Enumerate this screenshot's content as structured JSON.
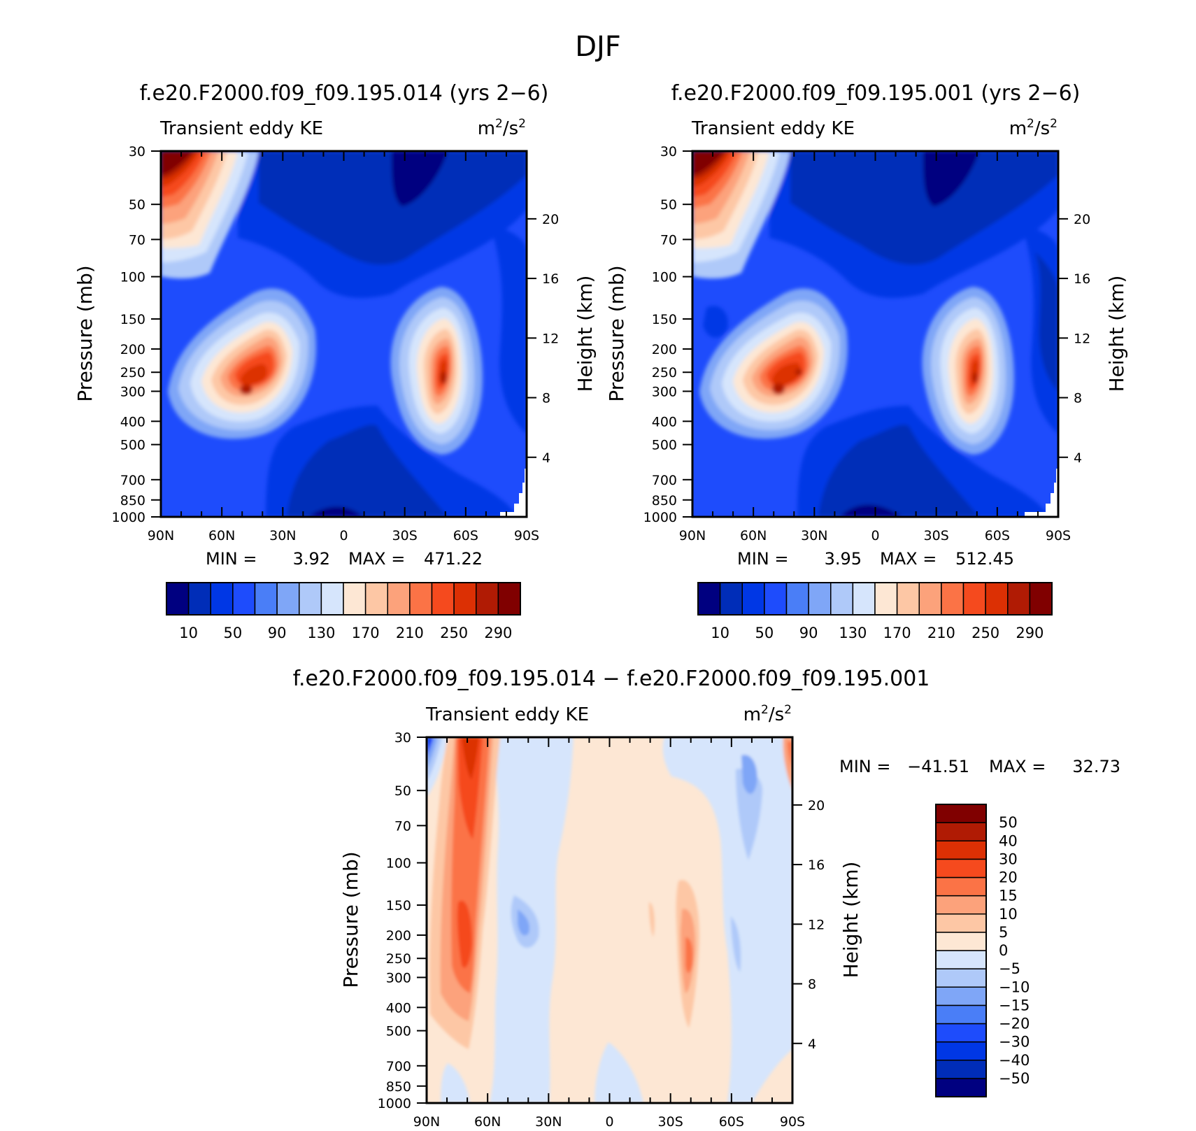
{
  "figure": {
    "title": "DJF"
  },
  "colors": {
    "djf_scale": [
      "#000080",
      "#002db8",
      "#0037e5",
      "#1e4cfc",
      "#4a7ef7",
      "#7fa6f7",
      "#afc9f9",
      "#d6e5fc",
      "#fde7d4",
      "#fdc7a5",
      "#fca27b",
      "#fb7346",
      "#f54a1e",
      "#dc3004",
      "#b01b04",
      "#800000"
    ],
    "diff_scale": [
      "#000080",
      "#002db8",
      "#0037e5",
      "#1e4cfc",
      "#4a7ef7",
      "#7fa6f7",
      "#afc9f9",
      "#d6e5fc",
      "#fde7d4",
      "#fdc7a5",
      "#fca27b",
      "#fb7346",
      "#f54a1e",
      "#dc3004",
      "#b01b04",
      "#800000"
    ]
  },
  "chart_data": [
    {
      "type": "contour",
      "title": "f.e20.F2000.f09_f09.195.014 (yrs 2−6)",
      "subtitle_left": "Transient eddy KE",
      "units_base": "m",
      "units_sup": "2",
      "units_mid": "/s",
      "units_sup2": "2",
      "xlabel": "",
      "ylabel": "Pressure (mb)",
      "ylabel_right": "Height (km)",
      "x_ticks": [
        "90N",
        "60N",
        "30N",
        "0",
        "30S",
        "60S",
        "90S"
      ],
      "x_lat": [
        90,
        60,
        30,
        0,
        -30,
        -60,
        -90
      ],
      "y_ticks": [
        "30",
        "50",
        "70",
        "100",
        "150",
        "200",
        "250",
        "300",
        "400",
        "500",
        "700",
        "850",
        "1000"
      ],
      "y_pressure": [
        30,
        50,
        70,
        100,
        150,
        200,
        250,
        300,
        400,
        500,
        700,
        850,
        1000
      ],
      "height_ticks": [
        "20",
        "16",
        "12",
        "8",
        "4"
      ],
      "height_km": [
        20,
        16,
        12,
        8,
        4
      ],
      "min_label": "MIN =",
      "min_value": "3.92",
      "max_label": "MAX =",
      "max_value": "471.22",
      "levels": [
        10,
        30,
        50,
        70,
        90,
        110,
        130,
        150,
        170,
        190,
        210,
        230,
        250,
        270,
        290
      ],
      "colorbar_labels": [
        "10",
        "50",
        "90",
        "130",
        "170",
        "210",
        "250",
        "290"
      ],
      "features": [
        {
          "name": "polar stratospheric maximum",
          "lat": 90,
          "p": 30,
          "value": 471
        },
        {
          "name": "northern jet core",
          "lat": 46,
          "p": 300,
          "value": 290
        },
        {
          "name": "southern jet core",
          "lat": -48,
          "p": 270,
          "value": 290
        },
        {
          "name": "tropical upper minimum",
          "lat": -25,
          "p": 45,
          "value": 5
        }
      ]
    },
    {
      "type": "contour",
      "title": "f.e20.F2000.f09_f09.195.001 (yrs 2−6)",
      "subtitle_left": "Transient eddy KE",
      "units_base": "m",
      "units_sup": "2",
      "units_mid": "/s",
      "units_sup2": "2",
      "xlabel": "",
      "ylabel": "Pressure (mb)",
      "ylabel_right": "Height (km)",
      "x_ticks": [
        "90N",
        "60N",
        "30N",
        "0",
        "30S",
        "60S",
        "90S"
      ],
      "x_lat": [
        90,
        60,
        30,
        0,
        -30,
        -60,
        -90
      ],
      "y_ticks": [
        "30",
        "50",
        "70",
        "100",
        "150",
        "200",
        "250",
        "300",
        "400",
        "500",
        "700",
        "850",
        "1000"
      ],
      "y_pressure": [
        30,
        50,
        70,
        100,
        150,
        200,
        250,
        300,
        400,
        500,
        700,
        850,
        1000
      ],
      "height_ticks": [
        "20",
        "16",
        "12",
        "8",
        "4"
      ],
      "height_km": [
        20,
        16,
        12,
        8,
        4
      ],
      "min_label": "MIN =",
      "min_value": "3.95",
      "max_label": "MAX =",
      "max_value": "512.45",
      "levels": [
        10,
        30,
        50,
        70,
        90,
        110,
        130,
        150,
        170,
        190,
        210,
        230,
        250,
        270,
        290
      ],
      "colorbar_labels": [
        "10",
        "50",
        "90",
        "130",
        "170",
        "210",
        "250",
        "290"
      ],
      "features": [
        {
          "name": "polar stratospheric maximum",
          "lat": 90,
          "p": 30,
          "value": 512
        },
        {
          "name": "northern jet core",
          "lat": 46,
          "p": 290,
          "value": 290
        },
        {
          "name": "southern jet core",
          "lat": -50,
          "p": 270,
          "value": 280
        },
        {
          "name": "tropical upper minimum",
          "lat": -20,
          "p": 45,
          "value": 5
        }
      ]
    },
    {
      "type": "contour",
      "title": "f.e20.F2000.f09_f09.195.014 − f.e20.F2000.f09_f09.195.001",
      "subtitle_left": "Transient eddy KE",
      "units_base": "m",
      "units_sup": "2",
      "units_mid": "/s",
      "units_sup2": "2",
      "xlabel": "",
      "ylabel": "Pressure (mb)",
      "ylabel_right": "Height (km)",
      "x_ticks": [
        "90N",
        "60N",
        "30N",
        "0",
        "30S",
        "60S",
        "90S"
      ],
      "x_lat": [
        90,
        60,
        30,
        0,
        -30,
        -60,
        -90
      ],
      "y_ticks": [
        "30",
        "50",
        "70",
        "100",
        "150",
        "200",
        "250",
        "300",
        "400",
        "500",
        "700",
        "850",
        "1000"
      ],
      "y_pressure": [
        30,
        50,
        70,
        100,
        150,
        200,
        250,
        300,
        400,
        500,
        700,
        850,
        1000
      ],
      "height_ticks": [
        "20",
        "16",
        "12",
        "8",
        "4"
      ],
      "height_km": [
        20,
        16,
        12,
        8,
        4
      ],
      "min_label": "MIN =",
      "min_value": "−41.51",
      "max_label": "MAX =",
      "max_value": "32.73",
      "levels": [
        -50,
        -40,
        -30,
        -20,
        -15,
        -10,
        -5,
        0,
        5,
        10,
        15,
        20,
        30,
        40,
        50
      ],
      "colorbar_labels": [
        "50",
        "40",
        "30",
        "20",
        "15",
        "10",
        "5",
        "0",
        "−5",
        "−10",
        "−15",
        "−20",
        "−30",
        "−40",
        "−50"
      ],
      "features": [
        {
          "name": "polar northern positive band",
          "lat": 73,
          "p": 100,
          "value": 25
        },
        {
          "name": "pole stratospheric negative",
          "lat": 90,
          "p": 30,
          "value": -41.5
        },
        {
          "name": "southern jet positive",
          "lat": -45,
          "p": 270,
          "value": 15
        },
        {
          "name": "northern subtropical negative",
          "lat": 35,
          "p": 230,
          "value": -10
        }
      ]
    }
  ]
}
